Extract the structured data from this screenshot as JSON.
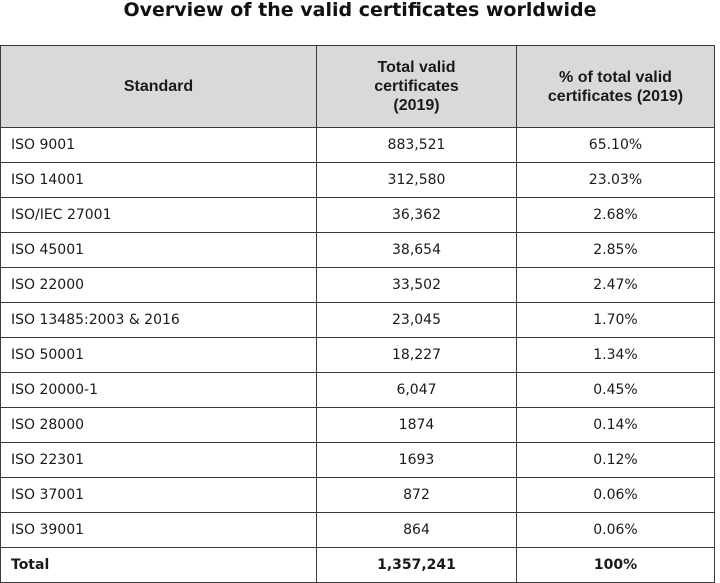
{
  "title": "Overview of the valid certificates worldwide",
  "headers": {
    "standard": "Standard",
    "total_line1": "Total valid",
    "total_line2": "certificates",
    "total_line3": "(2019)",
    "pct_line1": "% of total valid",
    "pct_line2": "certificates (2019)"
  },
  "rows": [
    {
      "standard": "ISO 9001",
      "total": "883,521",
      "pct": "65.10%"
    },
    {
      "standard": "ISO 14001",
      "total": "312,580",
      "pct": "23.03%"
    },
    {
      "standard": "ISO/IEC 27001",
      "total": "36,362",
      "pct": "2.68%"
    },
    {
      "standard": "ISO 45001",
      "total": "38,654",
      "pct": "2.85%"
    },
    {
      "standard": "ISO 22000",
      "total": "33,502",
      "pct": "2.47%"
    },
    {
      "standard": "ISO 13485:2003 & 2016",
      "total": "23,045",
      "pct": "1.70%"
    },
    {
      "standard": "ISO 50001",
      "total": "18,227",
      "pct": "1.34%"
    },
    {
      "standard": "ISO 20000-1",
      "total": "6,047",
      "pct": "0.45%"
    },
    {
      "standard": "ISO 28000",
      "total": "1874",
      "pct": "0.14%"
    },
    {
      "standard": "ISO 22301",
      "total": "1693",
      "pct": "0.12%"
    },
    {
      "standard": "ISO 37001",
      "total": "872",
      "pct": "0.06%"
    },
    {
      "standard": "ISO 39001",
      "total": "864",
      "pct": "0.06%"
    }
  ],
  "total_row": {
    "standard": "Total",
    "total": "1,357,241",
    "pct": "100%"
  },
  "colors": {
    "header_bg": "#d9d9d9",
    "border": "#3a3a3a",
    "text": "#1a1a1a"
  }
}
